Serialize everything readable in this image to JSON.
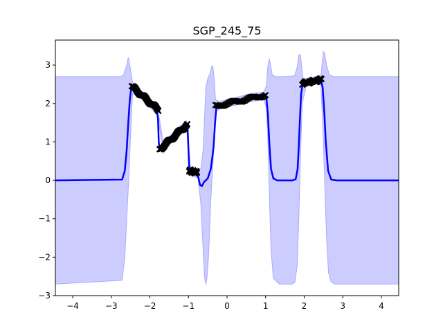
{
  "chart_data": {
    "type": "line",
    "title": "SGP_245_75",
    "xlabel": "",
    "ylabel": "",
    "xlim": [
      -4.45,
      4.45
    ],
    "ylim": [
      -3.0,
      3.65
    ],
    "grid": false,
    "legend": "none",
    "x_ticks": [
      -4,
      -3,
      -2,
      -1,
      0,
      1,
      2,
      3,
      4
    ],
    "x_tick_labels": [
      "−4",
      "−3",
      "−2",
      "−1",
      "0",
      "1",
      "2",
      "3",
      "4"
    ],
    "y_ticks": [
      -3,
      -2,
      -1,
      0,
      1,
      2,
      3
    ],
    "y_tick_labels": [
      "−3",
      "−2",
      "−1",
      "0",
      "1",
      "2",
      "3"
    ],
    "colors": {
      "mean_line": "#0000ff",
      "confidence_band": "#ccccff",
      "band_edge": "#aaaaff",
      "points": "#000000"
    },
    "series": [
      {
        "role": "mean",
        "x": [
          -4.45,
          -2.72,
          -2.65,
          -2.6,
          -2.56,
          -2.52,
          -2.49,
          -2.46,
          -2.4,
          -2.3,
          -2.2,
          -2.1,
          -2.0,
          -1.9,
          -1.82,
          -1.79,
          -1.77,
          -1.75,
          -1.6,
          -1.45,
          -1.3,
          -1.2,
          -1.1,
          -1.05,
          -1.02,
          -1.0,
          -0.98,
          -0.95,
          -0.9,
          -0.85,
          -0.8,
          -0.75,
          -0.7,
          -0.65,
          -0.6,
          -0.5,
          -0.42,
          -0.35,
          -0.31,
          -0.28,
          -0.25,
          -0.2,
          0.0,
          0.2,
          0.4,
          0.6,
          0.8,
          0.97,
          1.02,
          1.06,
          1.1,
          1.14,
          1.2,
          1.3,
          1.5,
          1.7,
          1.78,
          1.83,
          1.86,
          1.89,
          1.92,
          1.96,
          2.0,
          2.1,
          2.2,
          2.3,
          2.4,
          2.44,
          2.48,
          2.52,
          2.56,
          2.62,
          2.7,
          2.85,
          4.45
        ],
        "y": [
          0.0,
          0.02,
          0.25,
          0.8,
          1.5,
          2.1,
          2.35,
          2.45,
          2.4,
          2.3,
          2.2,
          2.1,
          2.0,
          1.9,
          1.82,
          1.6,
          1.0,
          0.8,
          0.95,
          1.1,
          1.28,
          1.38,
          1.45,
          1.45,
          1.3,
          0.8,
          0.3,
          0.25,
          0.23,
          0.22,
          0.2,
          0.1,
          -0.12,
          -0.15,
          -0.05,
          0.05,
          0.3,
          0.85,
          1.5,
          1.85,
          1.93,
          1.95,
          2.02,
          2.06,
          2.1,
          2.14,
          2.19,
          2.22,
          2.15,
          1.7,
          0.9,
          0.3,
          0.05,
          0.0,
          0.0,
          0.0,
          0.03,
          0.3,
          0.9,
          1.6,
          2.25,
          2.5,
          2.55,
          2.56,
          2.58,
          2.6,
          2.62,
          2.6,
          2.4,
          1.8,
          1.0,
          0.25,
          0.02,
          0.0,
          0.0
        ]
      },
      {
        "role": "upper_bound",
        "x": [
          -4.45,
          -2.75,
          -2.68,
          -2.6,
          -2.56,
          -2.52,
          -2.45,
          -2.3,
          -2.0,
          -1.8,
          -1.65,
          -1.3,
          -1.05,
          -0.95,
          -0.85,
          -0.75,
          -0.68,
          -0.62,
          -0.55,
          -0.5,
          -0.45,
          -0.4,
          -0.37,
          -0.33,
          -0.3,
          -0.2,
          0.2,
          0.6,
          0.95,
          1.02,
          1.05,
          1.08,
          1.1,
          1.13,
          1.17,
          1.25,
          1.5,
          1.75,
          1.82,
          1.86,
          1.9,
          1.93,
          1.97,
          2.05,
          2.3,
          2.44,
          2.47,
          2.5,
          2.53,
          2.58,
          2.65,
          2.75,
          4.45
        ],
        "y": [
          2.7,
          2.7,
          2.75,
          3.0,
          3.2,
          3.0,
          2.55,
          2.4,
          2.1,
          1.9,
          0.95,
          1.35,
          1.55,
          0.35,
          0.35,
          0.3,
          0.3,
          0.8,
          2.4,
          2.65,
          2.75,
          2.95,
          2.98,
          2.6,
          2.1,
          2.05,
          2.15,
          2.25,
          2.3,
          2.45,
          2.9,
          3.1,
          3.15,
          3.0,
          2.75,
          2.7,
          2.7,
          2.72,
          2.95,
          3.25,
          3.28,
          3.0,
          2.65,
          2.65,
          2.7,
          2.75,
          3.1,
          3.35,
          3.3,
          3.0,
          2.75,
          2.7,
          2.7
        ]
      },
      {
        "role": "lower_bound",
        "x": [
          -4.45,
          -2.72,
          -2.65,
          -2.6,
          -2.55,
          -2.5,
          -2.45,
          -2.3,
          -2.0,
          -1.8,
          -1.65,
          -1.3,
          -1.05,
          -0.95,
          -0.85,
          -0.75,
          -0.68,
          -0.62,
          -0.58,
          -0.55,
          -0.52,
          -0.48,
          -0.42,
          -0.36,
          -0.32,
          -0.28,
          -0.2,
          0.2,
          0.6,
          0.95,
          1.02,
          1.06,
          1.1,
          1.14,
          1.2,
          1.35,
          1.5,
          1.6,
          1.7,
          1.76,
          1.82,
          1.86,
          1.9,
          1.95,
          2.05,
          2.3,
          2.43,
          2.48,
          2.53,
          2.58,
          2.63,
          2.7,
          2.8,
          4.45
        ],
        "y": [
          -2.7,
          -2.6,
          -2.0,
          -1.0,
          0.0,
          1.2,
          2.25,
          2.2,
          1.9,
          1.7,
          0.7,
          1.2,
          1.35,
          0.12,
          0.1,
          0.05,
          -0.6,
          -1.8,
          -2.55,
          -2.7,
          -2.55,
          -2.0,
          -0.5,
          0.5,
          1.4,
          1.8,
          1.85,
          1.95,
          2.05,
          2.1,
          1.9,
          1.0,
          -0.5,
          -1.8,
          -2.55,
          -2.7,
          -2.7,
          -2.7,
          -2.7,
          -2.65,
          -2.2,
          -1.0,
          0.5,
          2.0,
          2.45,
          2.5,
          2.5,
          1.5,
          0.0,
          -1.5,
          -2.4,
          -2.65,
          -2.7,
          -2.7
        ]
      },
      {
        "role": "observations",
        "segments": [
          {
            "x_start": -2.47,
            "x_end": -1.78,
            "y_start": 2.45,
            "y_end": 1.83
          },
          {
            "x_start": -1.75,
            "x_end": -1.03,
            "y_start": 0.8,
            "y_end": 1.45
          },
          {
            "x_start": -0.98,
            "x_end": -0.78,
            "y_start": 0.25,
            "y_end": 0.2
          },
          {
            "x_start": -0.3,
            "x_end": 1.0,
            "y_start": 1.93,
            "y_end": 2.22
          },
          {
            "x_start": 1.95,
            "x_end": 2.45,
            "y_start": 2.52,
            "y_end": 2.62
          }
        ],
        "points_per_segment": 40,
        "marker": "x"
      }
    ]
  }
}
